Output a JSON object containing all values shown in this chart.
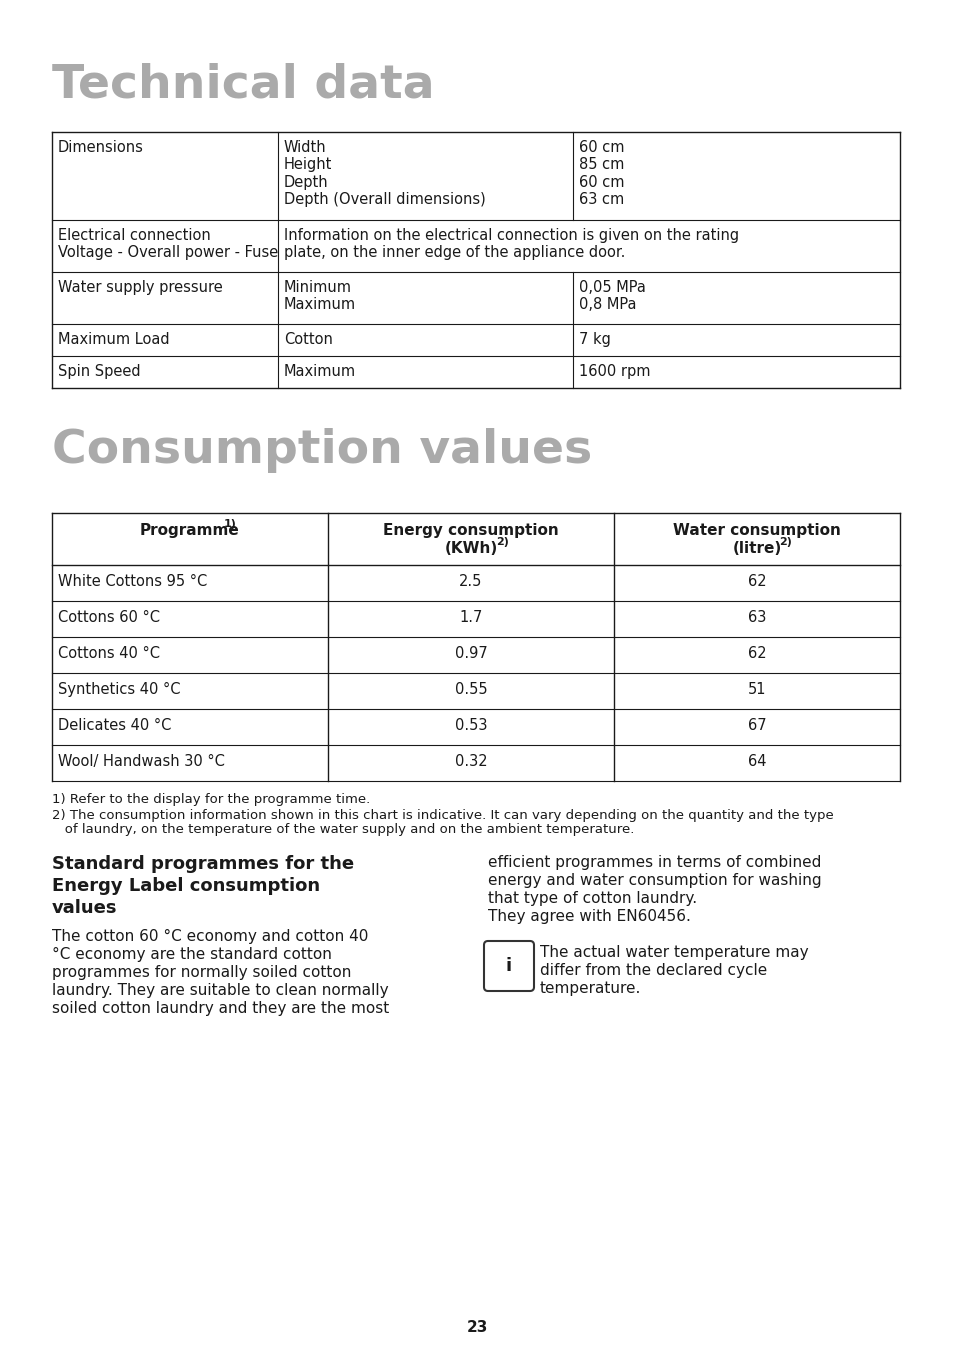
{
  "bg_color": "#ffffff",
  "title1": "Technical data",
  "title1_color": "#aaaaaa",
  "title2": "Consumption values",
  "title2_color": "#aaaaaa",
  "tech_rows": [
    {
      "col1": "Dimensions",
      "col2": "Width\nHeight\nDepth\nDepth (Overall dimensions)",
      "col3": "60 cm\n85 cm\n60 cm\n63 cm",
      "span": false
    },
    {
      "col1": "Electrical connection\nVoltage - Overall power - Fuse",
      "col2": "Information on the electrical connection is given on the rating\nplate, on the inner edge of the appliance door.",
      "col3": "",
      "span": true
    },
    {
      "col1": "Water supply pressure",
      "col2": "Minimum\nMaximum",
      "col3": "0,05 MPa\n0,8 MPa",
      "span": false
    },
    {
      "col1": "Maximum Load",
      "col2": "Cotton",
      "col3": "7 kg",
      "span": false
    },
    {
      "col1": "Spin Speed",
      "col2": "Maximum",
      "col3": "1600 rpm",
      "span": false
    }
  ],
  "cons_rows": [
    [
      "White Cottons 95 °C",
      "2.5",
      "62"
    ],
    [
      "Cottons 60 °C",
      "1.7",
      "63"
    ],
    [
      "Cottons 40 °C",
      "0.97",
      "62"
    ],
    [
      "Synthetics 40 °C",
      "0.55",
      "51"
    ],
    [
      "Delicates 40 °C",
      "0.53",
      "67"
    ],
    [
      "Wool/ Handwash 30 °C",
      "0.32",
      "64"
    ]
  ],
  "footnote1": "1) Refer to the display for the programme time.",
  "footnote2": "2) The consumption information shown in this chart is indicative. It can vary depending on the quantity and the type",
  "footnote2b": "   of laundry, on the temperature of the water supply and on the ambient temperature.",
  "sec_title_line1": "Standard programmes for the",
  "sec_title_line2": "Energy Label consumption",
  "sec_title_line3": "values",
  "left_para_lines": [
    "The cotton 60 °C economy and cotton 40",
    "°C economy are the standard cotton",
    "programmes for normally soiled cotton",
    "laundry. They are suitable to clean normally",
    "soiled cotton laundry and they are the most"
  ],
  "right_para1_lines": [
    "efficient programmes in terms of combined",
    "energy and water consumption for washing",
    "that type of cotton laundry.",
    "They agree with EN60456."
  ],
  "right_para2_lines": [
    "The actual water temperature may",
    "differ from the declared cycle",
    "temperature."
  ],
  "page_number": "23"
}
